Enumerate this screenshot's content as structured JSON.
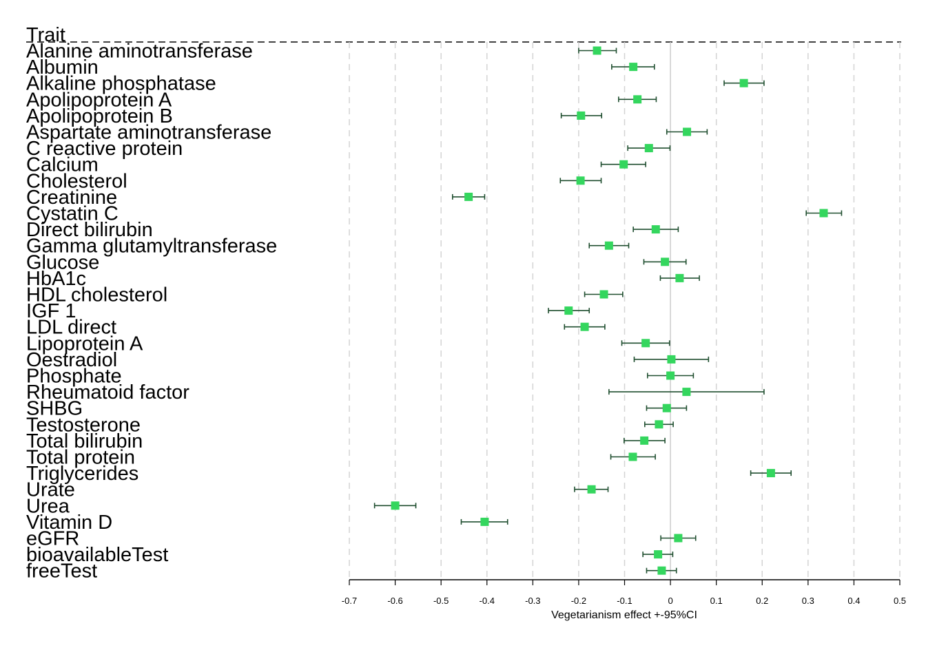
{
  "chart_data": {
    "type": "forest",
    "header": "Trait",
    "xlabel": "Vegetarianism effect +-95%CI",
    "xlim": [
      -0.7,
      0.5
    ],
    "xticks": [
      -0.7,
      -0.6,
      -0.5,
      -0.4,
      -0.3,
      -0.2,
      -0.1,
      0,
      0.1,
      0.2,
      0.3,
      0.4,
      0.5
    ],
    "grid": "vertical dashed",
    "colors": {
      "point": "#34d65e",
      "errorbar": "#1f4e2f",
      "zero_line": "#cccccc",
      "grid": "#d3d3d3"
    },
    "rows": [
      {
        "trait": "Alanine aminotransferase",
        "estimate": -0.16,
        "lower": -0.2,
        "upper": -0.118
      },
      {
        "trait": "Albumin",
        "estimate": -0.081,
        "lower": -0.128,
        "upper": -0.035
      },
      {
        "trait": "Alkaline phosphatase",
        "estimate": 0.16,
        "lower": 0.117,
        "upper": 0.204
      },
      {
        "trait": "Apolipoprotein A",
        "estimate": -0.072,
        "lower": -0.113,
        "upper": -0.031
      },
      {
        "trait": "Apolipoprotein B",
        "estimate": -0.195,
        "lower": -0.238,
        "upper": -0.15
      },
      {
        "trait": "Aspartate aminotransferase",
        "estimate": 0.036,
        "lower": -0.008,
        "upper": 0.08
      },
      {
        "trait": "C reactive protein",
        "estimate": -0.047,
        "lower": -0.093,
        "upper": -0.001
      },
      {
        "trait": "Calcium",
        "estimate": -0.102,
        "lower": -0.151,
        "upper": -0.054
      },
      {
        "trait": "Cholesterol",
        "estimate": -0.196,
        "lower": -0.24,
        "upper": -0.151
      },
      {
        "trait": "Creatinine",
        "estimate": -0.44,
        "lower": -0.475,
        "upper": -0.405
      },
      {
        "trait": "Cystatin C",
        "estimate": 0.334,
        "lower": 0.296,
        "upper": 0.373
      },
      {
        "trait": "Direct bilirubin",
        "estimate": -0.032,
        "lower": -0.081,
        "upper": 0.017
      },
      {
        "trait": "Gamma glutamyltransferase",
        "estimate": -0.134,
        "lower": -0.177,
        "upper": -0.091
      },
      {
        "trait": "Glucose",
        "estimate": -0.012,
        "lower": -0.058,
        "upper": 0.034
      },
      {
        "trait": "HbA1c",
        "estimate": 0.02,
        "lower": -0.022,
        "upper": 0.063
      },
      {
        "trait": "HDL cholesterol",
        "estimate": -0.145,
        "lower": -0.187,
        "upper": -0.104
      },
      {
        "trait": "IGF 1",
        "estimate": -0.222,
        "lower": -0.266,
        "upper": -0.177
      },
      {
        "trait": "LDL direct",
        "estimate": -0.187,
        "lower": -0.231,
        "upper": -0.143
      },
      {
        "trait": "Lipoprotein A",
        "estimate": -0.054,
        "lower": -0.106,
        "upper": -0.002
      },
      {
        "trait": "Oestradiol",
        "estimate": 0.002,
        "lower": -0.079,
        "upper": 0.083
      },
      {
        "trait": "Phosphate",
        "estimate": 0.0,
        "lower": -0.05,
        "upper": 0.05
      },
      {
        "trait": "Rheumatoid factor",
        "estimate": 0.035,
        "lower": -0.134,
        "upper": 0.204
      },
      {
        "trait": "SHBG",
        "estimate": -0.008,
        "lower": -0.052,
        "upper": 0.035
      },
      {
        "trait": "Testosterone",
        "estimate": -0.025,
        "lower": -0.056,
        "upper": 0.006
      },
      {
        "trait": "Total bilirubin",
        "estimate": -0.057,
        "lower": -0.101,
        "upper": -0.012
      },
      {
        "trait": "Total protein",
        "estimate": -0.082,
        "lower": -0.13,
        "upper": -0.033
      },
      {
        "trait": "Triglycerides",
        "estimate": 0.219,
        "lower": 0.175,
        "upper": 0.263
      },
      {
        "trait": "Urate",
        "estimate": -0.172,
        "lower": -0.209,
        "upper": -0.136
      },
      {
        "trait": "Urea",
        "estimate": -0.6,
        "lower": -0.645,
        "upper": -0.555
      },
      {
        "trait": "Vitamin D",
        "estimate": -0.405,
        "lower": -0.456,
        "upper": -0.355
      },
      {
        "trait": "eGFR",
        "estimate": 0.017,
        "lower": -0.021,
        "upper": 0.055
      },
      {
        "trait": "bioavailableTest",
        "estimate": -0.027,
        "lower": -0.06,
        "upper": 0.005
      },
      {
        "trait": "freeTest",
        "estimate": -0.019,
        "lower": -0.052,
        "upper": 0.013
      }
    ]
  }
}
